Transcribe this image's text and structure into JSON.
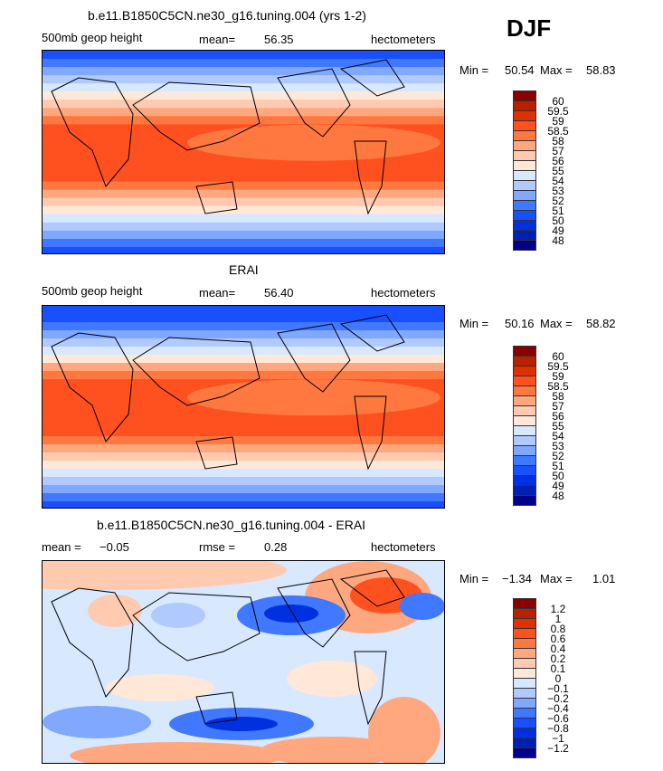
{
  "season": "DJF",
  "colors": [
    "#8a0000",
    "#b82000",
    "#e03000",
    "#ff5020",
    "#ff7840",
    "#ffa880",
    "#ffcab0",
    "#ffe8d8",
    "#d8e8ff",
    "#b0caff",
    "#80a8ff",
    "#4078ff",
    "#1850ff",
    "#0030e0",
    "#0020b0",
    "#00008a"
  ],
  "chart_data": [
    {
      "type": "heatmap",
      "title": "b.e11.B1850C5CN.ne30_g16.tuning.004 (yrs 1-2)",
      "variable": "500mb geop height",
      "stat_label": "mean=",
      "stat_value": "56.35",
      "units": "hectometers",
      "min_label": "Min =",
      "min": "50.54",
      "max_label": "Max =",
      "max": "58.83",
      "levels": [
        "60",
        "59.5",
        "59",
        "58.5",
        "58",
        "57",
        "56",
        "55",
        "54",
        "53",
        "52",
        "51",
        "50",
        "49",
        "48"
      ]
    },
    {
      "type": "heatmap",
      "title": "ERAI",
      "variable": "500mb geop height",
      "stat_label": "mean=",
      "stat_value": "56.40",
      "units": "hectometers",
      "min_label": "Min =",
      "min": "50.16",
      "max_label": "Max =",
      "max": "58.82",
      "levels": [
        "60",
        "59.5",
        "59",
        "58.5",
        "58",
        "57",
        "56",
        "55",
        "54",
        "53",
        "52",
        "51",
        "50",
        "49",
        "48"
      ]
    },
    {
      "type": "heatmap",
      "title": "b.e11.B1850C5CN.ne30_g16.tuning.004 - ERAI",
      "variable": "mean =",
      "stat_label": "rmse =",
      "mean_value": "−0.05",
      "stat_value": "0.28",
      "units": "hectometers",
      "min_label": "Min =",
      "min": "−1.34",
      "max_label": "Max =",
      "max": "1.01",
      "levels": [
        "1.2",
        "1",
        "0.8",
        "0.6",
        "0.4",
        "0.2",
        "0.1",
        "0",
        "−0.1",
        "−0.2",
        "−0.4",
        "−0.6",
        "−0.8",
        "−1",
        "−1.2"
      ]
    }
  ]
}
